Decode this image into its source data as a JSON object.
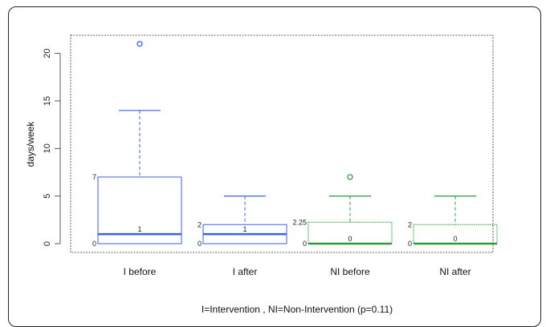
{
  "chart_data": {
    "type": "box",
    "xlabel": "I=Intervention , NI=Non-Intervention (p=0.11)",
    "ylabel": "days/week",
    "ylim": [
      0,
      21
    ],
    "yticks": [
      0,
      5,
      10,
      15,
      20
    ],
    "categories": [
      "I before",
      "I after",
      "NI before",
      "NI after"
    ],
    "boxes": [
      {
        "label": "I before",
        "color": "#3b5ff0",
        "min": 0,
        "q1": 0,
        "median": 1,
        "q3": 7,
        "max": 14,
        "outliers": [
          21
        ],
        "annotations": {
          "q1": "0",
          "median": "1",
          "q3": "7"
        }
      },
      {
        "label": "I after",
        "color": "#3b5ff0",
        "min": 0,
        "q1": 0,
        "median": 1,
        "q3": 2,
        "max": 5,
        "outliers": [],
        "annotations": {
          "q1": "0",
          "median": "1",
          "q3": "2"
        }
      },
      {
        "label": "NI before",
        "color": "#2e9b3a",
        "min": 0,
        "q1": 0,
        "median": 0,
        "q3": 2.25,
        "max": 5,
        "outliers": [
          7
        ],
        "annotations": {
          "q1": "0",
          "median": "0",
          "q3": "2.25"
        }
      },
      {
        "label": "NI after",
        "color": "#2e9b3a",
        "min": 0,
        "q1": 0,
        "median": 0,
        "q3": 2,
        "max": 5,
        "outliers": [],
        "annotations": {
          "q1": "0",
          "median": "0",
          "q3": "2"
        }
      }
    ]
  }
}
